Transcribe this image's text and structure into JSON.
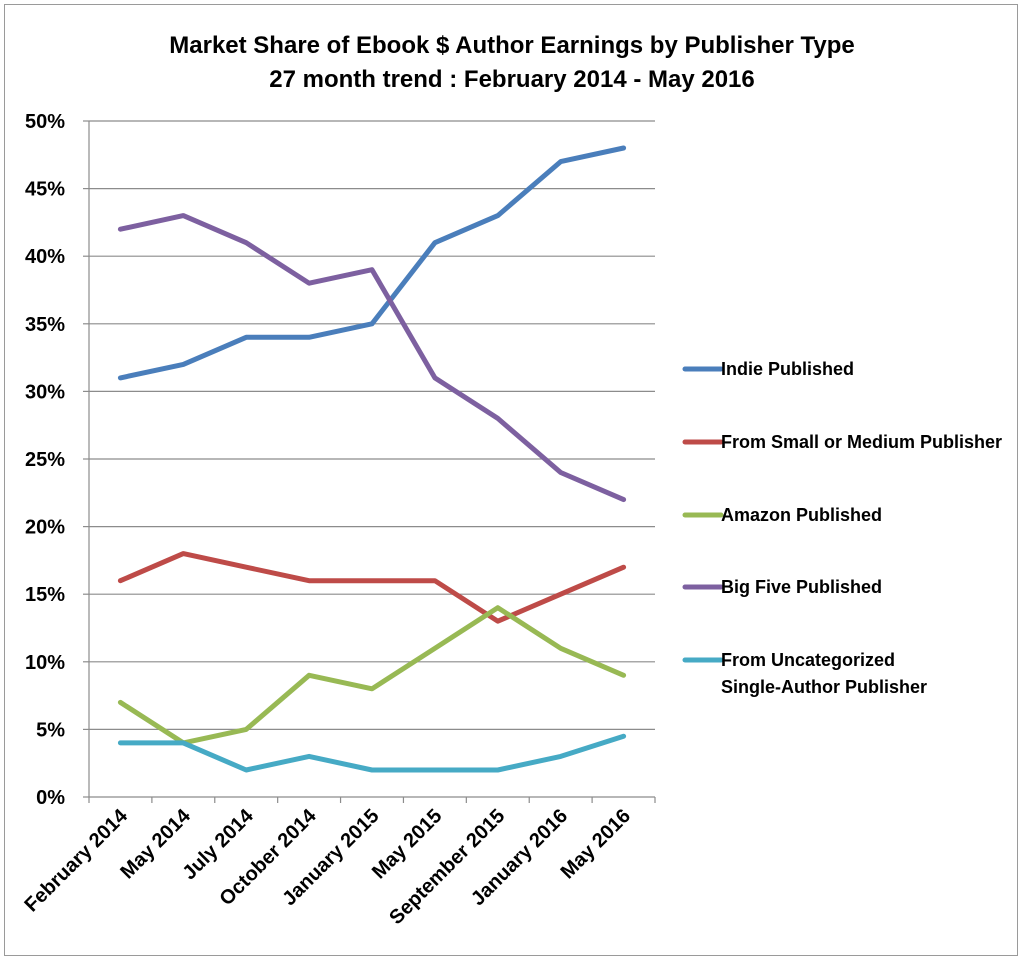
{
  "chart_data": {
    "type": "line",
    "title": "Market Share of Ebook $ Author Earnings by Publisher Type",
    "subtitle": "27 month trend : February 2014 - May 2016",
    "xlabel": "",
    "ylabel": "",
    "categories": [
      "February 2014",
      "May 2014",
      "July 2014",
      "October 2014",
      "January 2015",
      "May 2015",
      "September 2015",
      "January 2016",
      "May 2016"
    ],
    "ylim": [
      0,
      50
    ],
    "y_ticks": [
      "0%",
      "5%",
      "10%",
      "15%",
      "20%",
      "25%",
      "30%",
      "35%",
      "40%",
      "45%",
      "50%"
    ],
    "grid": true,
    "legend_position": "right",
    "series": [
      {
        "name": "Indie Published",
        "color": "#4a7ebb",
        "values": [
          31,
          32,
          34,
          34,
          35,
          41,
          43,
          47,
          48
        ]
      },
      {
        "name": "From Small or Medium Publisher",
        "color": "#be4b48",
        "values": [
          16,
          18,
          17,
          16,
          16,
          16,
          13,
          15,
          17
        ]
      },
      {
        "name": "Amazon Published",
        "color": "#98b954",
        "values": [
          7,
          4,
          5,
          9,
          8,
          11,
          14,
          11,
          9
        ]
      },
      {
        "name": "Big Five Published",
        "color": "#7d60a0",
        "values": [
          42,
          43,
          41,
          38,
          39,
          31,
          28,
          24,
          22
        ]
      },
      {
        "name": "From Uncategorized Single-Author Publisher",
        "color": "#46aac5",
        "values": [
          4,
          4,
          2,
          3,
          2,
          2,
          2,
          3,
          4.5
        ]
      }
    ]
  }
}
